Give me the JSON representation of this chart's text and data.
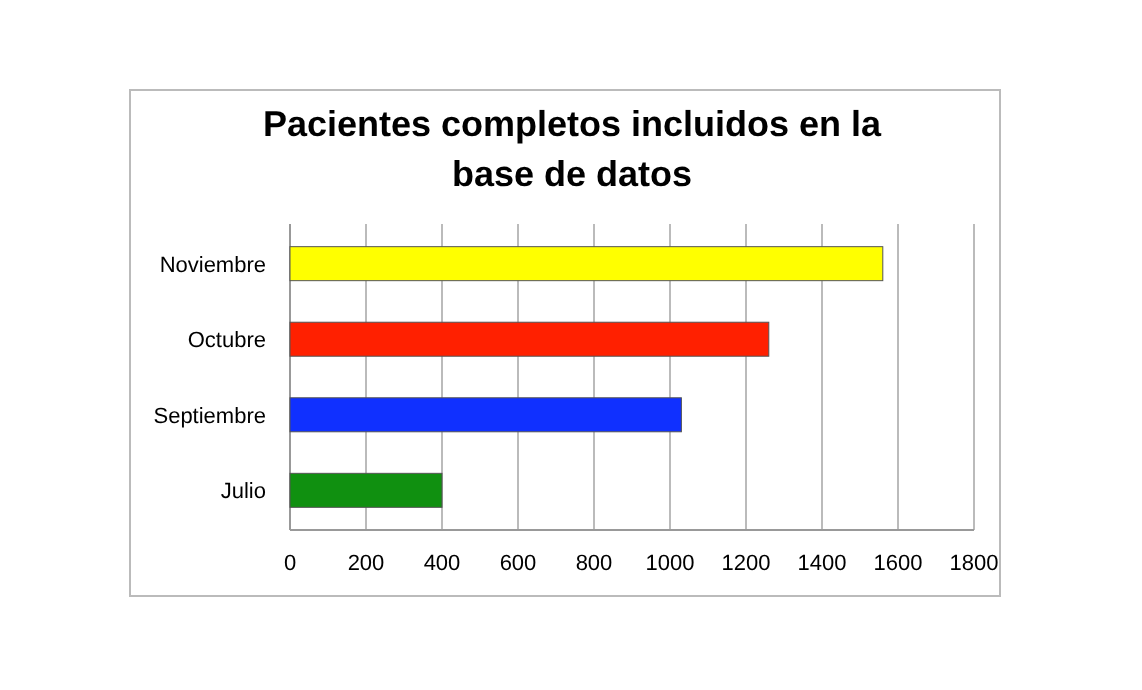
{
  "chart_data": {
    "type": "bar",
    "orientation": "horizontal",
    "title": "Pacientes completos incluidos en la base de datos",
    "categories": [
      "Noviembre",
      "Octubre",
      "Septiembre",
      "Julio"
    ],
    "values": [
      1560,
      1260,
      1030,
      400
    ],
    "colors": [
      "#ffff00",
      "#ff2000",
      "#1030ff",
      "#109010"
    ],
    "xlim": [
      0,
      1800
    ],
    "xticks": [
      0,
      200,
      400,
      600,
      800,
      1000,
      1200,
      1400,
      1600,
      1800
    ],
    "grid": "x"
  }
}
